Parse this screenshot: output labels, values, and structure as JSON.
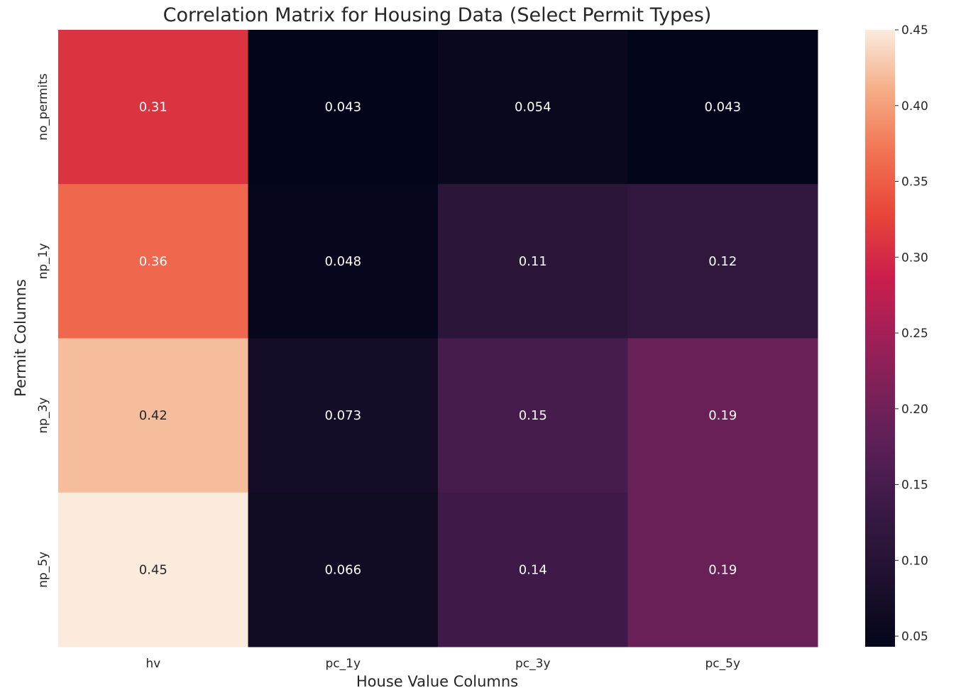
{
  "chart_data": {
    "type": "heatmap",
    "title": "Correlation Matrix for Housing Data (Select Permit Types)",
    "xlabel": "House Value Columns",
    "ylabel": "Permit Columns",
    "x_categories": [
      "hv",
      "pc_1y",
      "pc_3y",
      "pc_5y"
    ],
    "y_categories": [
      "no_permits",
      "np_1y",
      "np_3y",
      "np_5y"
    ],
    "values": [
      [
        0.31,
        0.043,
        0.054,
        0.043
      ],
      [
        0.36,
        0.048,
        0.11,
        0.12
      ],
      [
        0.42,
        0.073,
        0.15,
        0.19
      ],
      [
        0.45,
        0.066,
        0.14,
        0.19
      ]
    ],
    "annotations": [
      [
        "0.31",
        "0.043",
        "0.054",
        "0.043"
      ],
      [
        "0.36",
        "0.048",
        "0.11",
        "0.12"
      ],
      [
        "0.42",
        "0.073",
        "0.15",
        "0.19"
      ],
      [
        "0.45",
        "0.066",
        "0.14",
        "0.19"
      ]
    ],
    "colormap": "rocket",
    "vmin": 0.043,
    "vmax": 0.45,
    "colorbar_ticks": [
      "0.05",
      "0.10",
      "0.15",
      "0.20",
      "0.25",
      "0.30",
      "0.35",
      "0.40",
      "0.45"
    ],
    "grid": false,
    "legend": "colorbar-right"
  }
}
